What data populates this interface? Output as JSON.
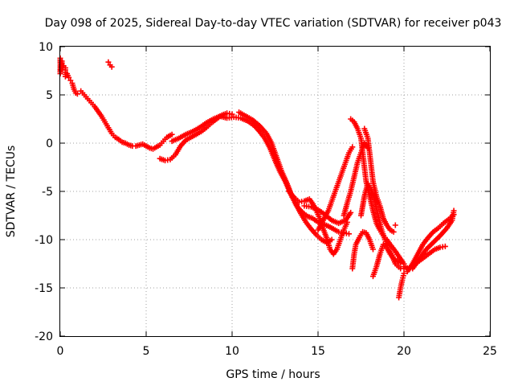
{
  "chart_data": {
    "type": "scatter",
    "title": "Day 098 of 2025, Sidereal Day-to-day VTEC variation (SDTVAR) for receiver p043",
    "xlabel": "GPS time / hours",
    "ylabel": "SDTVAR / TECUs",
    "xlim": [
      0,
      25
    ],
    "ylim": [
      -20,
      10
    ],
    "xticks": [
      "0",
      "5",
      "10",
      "15",
      "20",
      "25"
    ],
    "yticks": [
      "-20",
      "-15",
      "-10",
      "-5",
      "0",
      "5",
      "10"
    ],
    "grid": true,
    "marker": "+",
    "marker_color": "#ff0000",
    "series": [
      {
        "points": [
          [
            0.0,
            8.8
          ],
          [
            0.0,
            7.2
          ],
          [
            0.1,
            8.5
          ],
          [
            0.1,
            7.6
          ],
          [
            0.2,
            8.0
          ],
          [
            0.3,
            7.8
          ],
          [
            0.3,
            6.9
          ],
          [
            0.4,
            7.2
          ],
          [
            0.5,
            6.8
          ],
          [
            0.6,
            6.5
          ],
          [
            0.7,
            6.2
          ],
          [
            0.8,
            5.6
          ],
          [
            0.9,
            5.2
          ],
          [
            1.0,
            5.1
          ]
        ]
      },
      {
        "points": [
          [
            2.8,
            8.4
          ],
          [
            2.9,
            8.1
          ],
          [
            3.0,
            7.9
          ]
        ]
      },
      {
        "points": [
          [
            1.2,
            5.4
          ],
          [
            1.4,
            5.0
          ],
          [
            1.6,
            4.6
          ],
          [
            1.8,
            4.2
          ],
          [
            2.0,
            3.8
          ],
          [
            2.2,
            3.3
          ],
          [
            2.4,
            2.8
          ],
          [
            2.6,
            2.2
          ],
          [
            2.8,
            1.6
          ],
          [
            3.0,
            1.0
          ],
          [
            3.2,
            0.6
          ],
          [
            3.4,
            0.4
          ],
          [
            3.6,
            0.1
          ],
          [
            3.8,
            0.0
          ],
          [
            4.0,
            -0.2
          ],
          [
            4.2,
            -0.3
          ],
          [
            4.4,
            -0.3
          ],
          [
            4.6,
            -0.2
          ],
          [
            4.8,
            -0.1
          ],
          [
            5.0,
            -0.3
          ],
          [
            5.2,
            -0.5
          ],
          [
            5.4,
            -0.6
          ],
          [
            5.6,
            -0.4
          ],
          [
            5.8,
            -0.2
          ],
          [
            6.0,
            0.2
          ],
          [
            6.2,
            0.6
          ],
          [
            6.5,
            0.9
          ]
        ]
      },
      {
        "points": [
          [
            5.8,
            -1.6
          ],
          [
            6.1,
            -1.8
          ],
          [
            6.4,
            -1.7
          ],
          [
            6.7,
            -1.2
          ],
          [
            7.0,
            -0.3
          ],
          [
            7.3,
            0.3
          ],
          [
            7.6,
            0.6
          ],
          [
            7.9,
            0.9
          ],
          [
            8.2,
            1.2
          ],
          [
            8.5,
            1.6
          ],
          [
            8.8,
            2.1
          ],
          [
            9.1,
            2.5
          ],
          [
            9.4,
            2.9
          ],
          [
            9.7,
            3.1
          ],
          [
            10.0,
            3.0
          ]
        ]
      },
      {
        "points": [
          [
            6.5,
            0.2
          ],
          [
            6.9,
            0.5
          ],
          [
            7.3,
            0.9
          ],
          [
            7.7,
            1.2
          ],
          [
            8.1,
            1.6
          ],
          [
            8.5,
            2.1
          ],
          [
            8.9,
            2.5
          ],
          [
            9.3,
            2.8
          ],
          [
            9.7,
            2.6
          ],
          [
            10.1,
            2.7
          ],
          [
            10.5,
            2.6
          ],
          [
            10.9,
            2.3
          ],
          [
            11.3,
            1.8
          ],
          [
            11.6,
            1.2
          ],
          [
            11.9,
            0.5
          ],
          [
            12.2,
            -0.5
          ],
          [
            12.5,
            -1.8
          ],
          [
            12.8,
            -3.0
          ],
          [
            13.1,
            -4.0
          ],
          [
            13.4,
            -5.2
          ],
          [
            13.7,
            -6.3
          ],
          [
            14.0,
            -7.3
          ],
          [
            14.3,
            -8.2
          ],
          [
            14.6,
            -8.9
          ],
          [
            14.9,
            -9.5
          ],
          [
            15.2,
            -10.0
          ],
          [
            15.5,
            -10.3
          ],
          [
            15.8,
            -10.0
          ]
        ]
      },
      {
        "points": [
          [
            10.4,
            3.2
          ],
          [
            10.8,
            2.8
          ],
          [
            11.2,
            2.4
          ],
          [
            11.6,
            1.8
          ],
          [
            12.0,
            1.0
          ],
          [
            12.3,
            0.0
          ],
          [
            12.6,
            -1.5
          ],
          [
            12.9,
            -3.0
          ],
          [
            13.2,
            -4.2
          ],
          [
            13.5,
            -5.6
          ],
          [
            13.8,
            -6.6
          ],
          [
            14.1,
            -7.2
          ],
          [
            14.4,
            -7.6
          ],
          [
            14.7,
            -7.8
          ],
          [
            15.0,
            -8.2
          ],
          [
            15.3,
            -8.4
          ],
          [
            15.6,
            -8.6
          ],
          [
            15.9,
            -8.9
          ],
          [
            16.2,
            -9.2
          ],
          [
            16.5,
            -9.3
          ],
          [
            16.8,
            -9.4
          ]
        ]
      },
      {
        "points": [
          [
            13.3,
            -5.0
          ],
          [
            13.6,
            -5.6
          ],
          [
            13.9,
            -6.1
          ],
          [
            14.2,
            -6.0
          ],
          [
            14.5,
            -5.8
          ],
          [
            14.7,
            -6.3
          ],
          [
            14.9,
            -7.0
          ],
          [
            15.1,
            -7.8
          ],
          [
            15.3,
            -8.9
          ],
          [
            15.5,
            -9.8
          ],
          [
            15.7,
            -11.0
          ],
          [
            15.9,
            -11.5
          ],
          [
            16.1,
            -11.0
          ],
          [
            16.3,
            -10.0
          ],
          [
            16.5,
            -9.0
          ],
          [
            16.7,
            -8.2
          ]
        ]
      },
      {
        "points": [
          [
            14.2,
            -6.5
          ],
          [
            14.6,
            -6.6
          ],
          [
            15.0,
            -6.9
          ],
          [
            15.4,
            -7.4
          ],
          [
            15.8,
            -8.0
          ],
          [
            16.2,
            -8.3
          ],
          [
            16.6,
            -8.0
          ],
          [
            16.9,
            -7.2
          ]
        ]
      },
      {
        "points": [
          [
            15.0,
            -9.0
          ],
          [
            15.3,
            -8.0
          ],
          [
            15.6,
            -7.0
          ],
          [
            15.8,
            -6.0
          ],
          [
            16.0,
            -5.0
          ],
          [
            16.2,
            -4.0
          ],
          [
            16.4,
            -3.0
          ],
          [
            16.6,
            -2.0
          ],
          [
            16.8,
            -1.0
          ],
          [
            17.0,
            -0.4
          ]
        ]
      },
      {
        "points": [
          [
            16.5,
            -7.5
          ],
          [
            16.7,
            -6.2
          ],
          [
            16.9,
            -5.0
          ],
          [
            17.1,
            -3.5
          ],
          [
            17.3,
            -2.0
          ],
          [
            17.5,
            -1.0
          ],
          [
            17.7,
            0.0
          ],
          [
            17.9,
            -0.5
          ]
        ]
      },
      {
        "points": [
          [
            16.9,
            2.5
          ],
          [
            17.1,
            2.2
          ],
          [
            17.3,
            1.5
          ],
          [
            17.5,
            0.5
          ],
          [
            17.6,
            -1.0
          ],
          [
            17.7,
            -2.5
          ],
          [
            17.8,
            -4.0
          ],
          [
            18.0,
            -5.5
          ],
          [
            18.2,
            -7.0
          ],
          [
            18.4,
            -8.3
          ],
          [
            18.6,
            -9.0
          ],
          [
            18.8,
            -9.6
          ],
          [
            19.0,
            -10.0
          ],
          [
            19.2,
            -10.5
          ],
          [
            19.5,
            -11.2
          ],
          [
            19.8,
            -12.0
          ],
          [
            20.0,
            -12.5
          ]
        ]
      },
      {
        "points": [
          [
            17.7,
            1.5
          ],
          [
            17.9,
            0.5
          ],
          [
            18.0,
            -1.0
          ],
          [
            18.1,
            -2.5
          ],
          [
            18.2,
            -4.0
          ],
          [
            18.4,
            -5.5
          ],
          [
            18.6,
            -6.5
          ],
          [
            18.8,
            -7.8
          ],
          [
            19.0,
            -8.5
          ],
          [
            19.2,
            -9.0
          ],
          [
            19.4,
            -9.2
          ]
        ]
      },
      {
        "points": [
          [
            17.0,
            -13.0
          ],
          [
            17.1,
            -11.5
          ],
          [
            17.2,
            -10.5
          ],
          [
            17.4,
            -9.8
          ],
          [
            17.6,
            -9.2
          ],
          [
            17.8,
            -9.3
          ],
          [
            18.0,
            -10.0
          ],
          [
            18.2,
            -11.0
          ]
        ]
      },
      {
        "points": [
          [
            17.5,
            -7.5
          ],
          [
            17.7,
            -5.5
          ],
          [
            17.9,
            -4.2
          ],
          [
            18.1,
            -4.8
          ],
          [
            18.3,
            -6.0
          ],
          [
            18.5,
            -7.5
          ],
          [
            18.7,
            -9.0
          ],
          [
            18.9,
            -10.0
          ],
          [
            19.1,
            -11.0
          ],
          [
            19.3,
            -11.6
          ],
          [
            19.5,
            -12.5
          ],
          [
            19.8,
            -13.0
          ],
          [
            20.0,
            -13.0
          ]
        ]
      },
      {
        "points": [
          [
            18.2,
            -13.8
          ],
          [
            18.4,
            -12.8
          ],
          [
            18.6,
            -11.5
          ],
          [
            18.8,
            -10.5
          ],
          [
            19.0,
            -10.8
          ],
          [
            19.2,
            -11.5
          ],
          [
            19.4,
            -12.0
          ],
          [
            19.6,
            -12.2
          ],
          [
            19.8,
            -12.4
          ]
        ]
      },
      {
        "points": [
          [
            19.5,
            -8.5
          ]
        ]
      },
      {
        "points": [
          [
            19.7,
            -16.0
          ],
          [
            19.8,
            -15.0
          ],
          [
            19.9,
            -14.2
          ],
          [
            20.0,
            -13.5
          ]
        ]
      },
      {
        "points": [
          [
            20.0,
            -12.8
          ],
          [
            20.3,
            -13.0
          ],
          [
            20.6,
            -12.6
          ],
          [
            20.9,
            -12.2
          ],
          [
            21.2,
            -11.8
          ],
          [
            21.5,
            -11.4
          ],
          [
            21.8,
            -11.0
          ],
          [
            22.1,
            -10.8
          ],
          [
            22.4,
            -10.7
          ]
        ]
      },
      {
        "points": [
          [
            20.2,
            -13.3
          ],
          [
            20.5,
            -12.5
          ],
          [
            20.8,
            -11.5
          ],
          [
            21.1,
            -10.5
          ],
          [
            21.4,
            -9.8
          ],
          [
            21.7,
            -9.2
          ],
          [
            22.0,
            -8.8
          ],
          [
            22.3,
            -8.3
          ],
          [
            22.6,
            -7.9
          ],
          [
            22.9,
            -7.4
          ]
        ]
      },
      {
        "points": [
          [
            20.5,
            -13.0
          ],
          [
            20.9,
            -12.0
          ],
          [
            21.3,
            -11.0
          ],
          [
            21.7,
            -10.3
          ],
          [
            22.1,
            -9.6
          ],
          [
            22.5,
            -8.8
          ],
          [
            22.8,
            -8.0
          ],
          [
            22.9,
            -7.0
          ]
        ]
      }
    ]
  }
}
